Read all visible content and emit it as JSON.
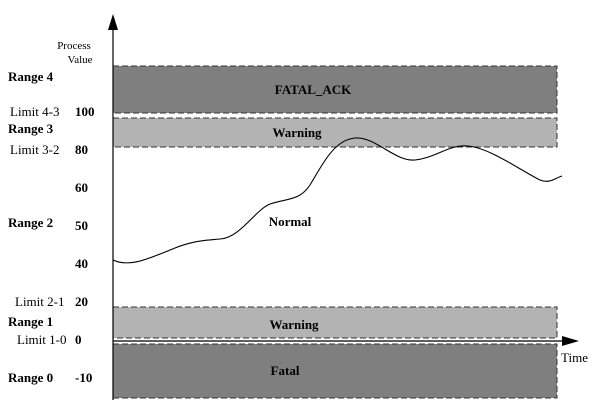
{
  "axis": {
    "y_label_line1": "Process",
    "y_label_line2": "Value",
    "x_label": "Time"
  },
  "ranges": [
    {
      "label": "Range 4"
    },
    {
      "label": "Range 3"
    },
    {
      "label": "Range 2"
    },
    {
      "label": "Range 1"
    },
    {
      "label": "Range 0"
    }
  ],
  "limits": [
    {
      "label": "Limit 4-3"
    },
    {
      "label": "Limit 3-2"
    },
    {
      "label": "Limit 2-1"
    },
    {
      "label": "Limit 1-0"
    }
  ],
  "ticks": [
    "100",
    "80",
    "60",
    "50",
    "40",
    "20",
    "0",
    "-10"
  ],
  "bands": [
    {
      "label": "FATAL_ACK",
      "color": "#7f7f7f"
    },
    {
      "label": "Warning",
      "color": "#b3b3b3"
    },
    {
      "label": "Warning",
      "color": "#b3b3b3"
    },
    {
      "label": "Fatal",
      "color": "#7f7f7f"
    }
  ],
  "normal_label": "Normal"
}
